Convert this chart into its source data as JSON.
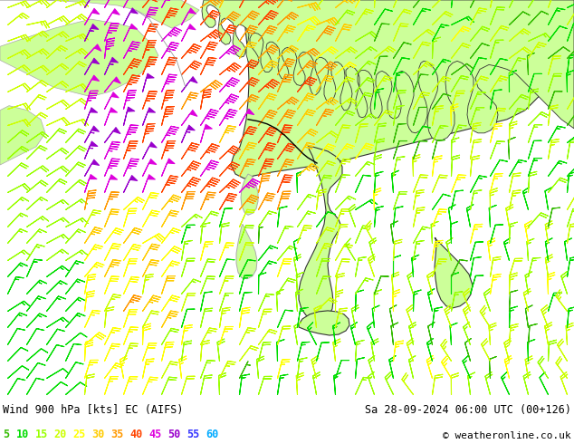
{
  "title_left": "Wind 900 hPa [kts] EC (AIFS)",
  "title_right": "Sa 28-09-2024 06:00 UTC (00+126)",
  "copyright": "© weatheronline.co.uk",
  "legend_values": [
    5,
    10,
    15,
    20,
    25,
    30,
    35,
    40,
    45,
    50,
    55,
    60
  ],
  "legend_colors": [
    "#33bb00",
    "#00dd00",
    "#99ff00",
    "#ccff00",
    "#ffff00",
    "#ffcc00",
    "#ff9900",
    "#ff4400",
    "#dd00dd",
    "#9900cc",
    "#3333ff",
    "#00aaff"
  ],
  "fig_width": 6.34,
  "fig_height": 4.9,
  "dpi": 100,
  "sea_color": "#d0d0d0",
  "land_color": "#ccff99",
  "bottom_bar_color": "#ffffff",
  "speed_colors": {
    "5": "#33bb00",
    "10": "#00dd00",
    "15": "#99ff00",
    "20": "#ccff00",
    "25": "#ffff00",
    "30": "#ffcc00",
    "35": "#ff9900",
    "40": "#ff4400",
    "45": "#dd00dd",
    "50": "#9900cc",
    "55": "#3333ff",
    "60": "#00aaff"
  }
}
